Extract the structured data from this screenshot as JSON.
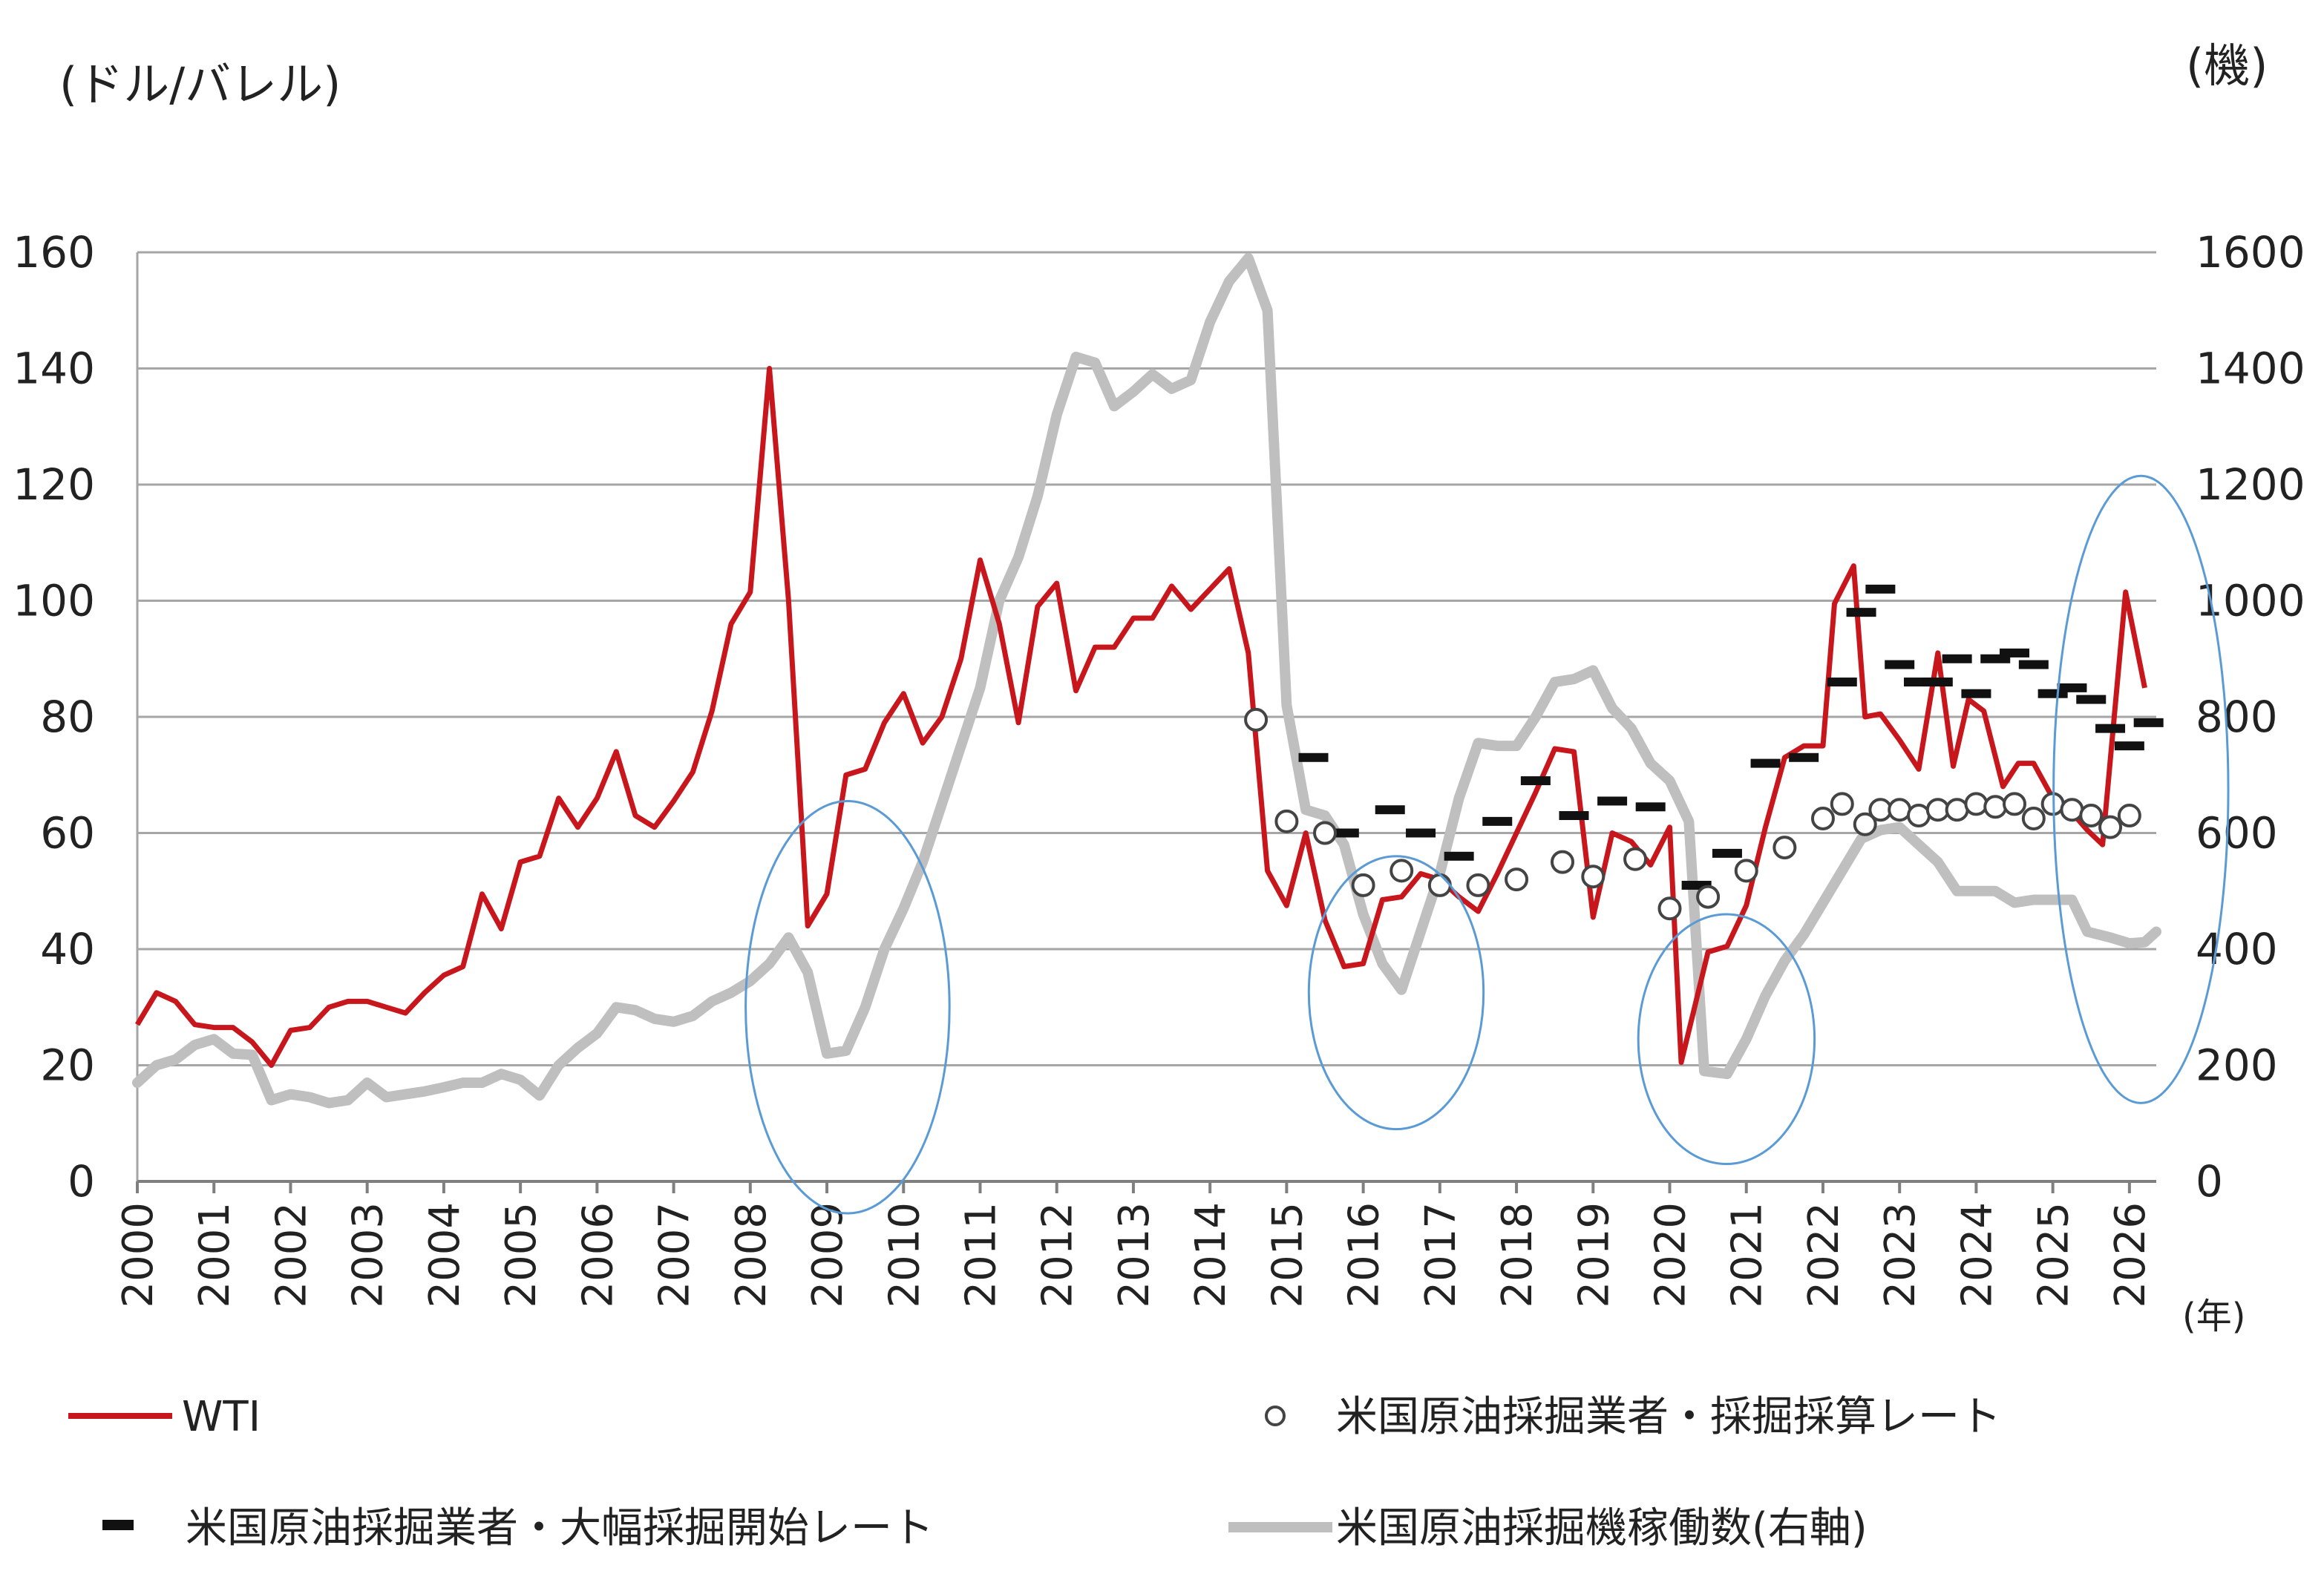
{
  "chart_data": {
    "type": "line",
    "left_axis_unit": "(ドル/バレル)",
    "right_axis_unit": "(機)",
    "x_unit": "(年)",
    "x_ticks": [
      "2000",
      "2001",
      "2002",
      "2003",
      "2004",
      "2005",
      "2006",
      "2007",
      "2008",
      "2009",
      "2010",
      "2011",
      "2012",
      "2013",
      "2014",
      "2015",
      "2016",
      "2017",
      "2018",
      "2019",
      "2020",
      "2021",
      "2022",
      "2023",
      "2024",
      "2025",
      "2026"
    ],
    "y_left_ticks": [
      "0",
      "20",
      "40",
      "60",
      "80",
      "100",
      "120",
      "140",
      "160"
    ],
    "y_right_ticks": [
      "0",
      "200",
      "400",
      "600",
      "800",
      "1000",
      "1200",
      "1400",
      "1600"
    ],
    "ylim_left": [
      0,
      160
    ],
    "ylim_right": [
      0,
      1600
    ],
    "xlim": [
      2000.0,
      2026.35
    ],
    "grid": "horizontal",
    "legend": {
      "wti": "WTI",
      "breakeven": "米国原油採掘業者・採掘採算レート",
      "new_well": "米国原油採掘業者・大幅採掘開始レート",
      "rigs": "米国原油採掘機稼働数(右軸)"
    },
    "colors": {
      "wti": "#c8161d",
      "rigs": "#bfbfbf",
      "circle": "#5b9bd5",
      "grid": "#a6a6a6"
    },
    "series": [
      {
        "name": "WTI",
        "axis": "left",
        "points": [
          [
            2000.0,
            27
          ],
          [
            2000.25,
            32.5
          ],
          [
            2000.5,
            31
          ],
          [
            2000.75,
            27
          ],
          [
            2001.0,
            26.5
          ],
          [
            2001.25,
            26.5
          ],
          [
            2001.5,
            24
          ],
          [
            2001.75,
            20
          ],
          [
            2002.0,
            26
          ],
          [
            2002.25,
            26.5
          ],
          [
            2002.5,
            30
          ],
          [
            2002.75,
            31
          ],
          [
            2003.0,
            31
          ],
          [
            2003.25,
            30
          ],
          [
            2003.5,
            29
          ],
          [
            2003.75,
            32.5
          ],
          [
            2004.0,
            35.5
          ],
          [
            2004.25,
            37
          ],
          [
            2004.5,
            49.5
          ],
          [
            2004.75,
            43.5
          ],
          [
            2005.0,
            55
          ],
          [
            2005.25,
            56
          ],
          [
            2005.5,
            66
          ],
          [
            2005.75,
            61
          ],
          [
            2006.0,
            66
          ],
          [
            2006.25,
            74
          ],
          [
            2006.5,
            63
          ],
          [
            2006.75,
            61
          ],
          [
            2007.0,
            65.5
          ],
          [
            2007.25,
            70.5
          ],
          [
            2007.5,
            81
          ],
          [
            2007.75,
            96
          ],
          [
            2008.0,
            101.5
          ],
          [
            2008.25,
            140
          ],
          [
            2008.5,
            100
          ],
          [
            2008.75,
            44
          ],
          [
            2009.0,
            49.5
          ],
          [
            2009.25,
            70
          ],
          [
            2009.5,
            71
          ],
          [
            2009.75,
            79
          ],
          [
            2010.0,
            84
          ],
          [
            2010.25,
            75.5
          ],
          [
            2010.5,
            80
          ],
          [
            2010.75,
            90
          ],
          [
            2011.0,
            107
          ],
          [
            2011.25,
            96
          ],
          [
            2011.5,
            79
          ],
          [
            2011.75,
            99
          ],
          [
            2012.0,
            103
          ],
          [
            2012.25,
            84.5
          ],
          [
            2012.5,
            92
          ],
          [
            2012.75,
            92
          ],
          [
            2013.0,
            97
          ],
          [
            2013.25,
            97
          ],
          [
            2013.5,
            102.5
          ],
          [
            2013.75,
            98.5
          ],
          [
            2014.0,
            102
          ],
          [
            2014.25,
            105.5
          ],
          [
            2014.5,
            91
          ],
          [
            2014.75,
            53.5
          ],
          [
            2015.0,
            47.5
          ],
          [
            2015.25,
            60
          ],
          [
            2015.5,
            45
          ],
          [
            2015.75,
            37
          ],
          [
            2016.0,
            37.5
          ],
          [
            2016.25,
            48.5
          ],
          [
            2016.5,
            49
          ],
          [
            2016.75,
            53
          ],
          [
            2017.0,
            52
          ],
          [
            2017.25,
            49
          ],
          [
            2017.5,
            46.5
          ],
          [
            2017.75,
            53
          ],
          [
            2018.0,
            60
          ],
          [
            2018.25,
            67
          ],
          [
            2018.5,
            74.5
          ],
          [
            2018.75,
            74
          ],
          [
            2019.0,
            45.5
          ],
          [
            2019.25,
            60
          ],
          [
            2019.5,
            58.5
          ],
          [
            2019.75,
            54.5
          ],
          [
            2020.0,
            61
          ],
          [
            2020.15,
            20.5
          ],
          [
            2020.5,
            39.5
          ],
          [
            2020.75,
            40.5
          ],
          [
            2021.0,
            47.5
          ],
          [
            2021.25,
            61
          ],
          [
            2021.5,
            73
          ],
          [
            2021.75,
            75
          ],
          [
            2022.0,
            75
          ],
          [
            2022.15,
            99.5
          ],
          [
            2022.4,
            106
          ],
          [
            2022.55,
            80
          ],
          [
            2022.75,
            80.5
          ],
          [
            2023.0,
            76
          ],
          [
            2023.25,
            71
          ],
          [
            2023.5,
            91
          ],
          [
            2023.7,
            71.5
          ],
          [
            2023.9,
            83
          ],
          [
            2024.1,
            81
          ],
          [
            2024.35,
            68
          ],
          [
            2024.55,
            72
          ],
          [
            2024.75,
            72
          ],
          [
            2025.0,
            66
          ],
          [
            2025.25,
            63.5
          ],
          [
            2025.45,
            60.5
          ],
          [
            2025.65,
            58
          ],
          [
            2025.95,
            101.5
          ],
          [
            2026.2,
            85
          ]
        ]
      },
      {
        "name": "米国原油採掘機稼働数(右軸)",
        "axis": "right",
        "points": [
          [
            2000.0,
            170
          ],
          [
            2000.25,
            200
          ],
          [
            2000.5,
            210
          ],
          [
            2000.75,
            235
          ],
          [
            2001.0,
            245
          ],
          [
            2001.25,
            220
          ],
          [
            2001.5,
            218
          ],
          [
            2001.75,
            140
          ],
          [
            2002.0,
            150
          ],
          [
            2002.25,
            145
          ],
          [
            2002.5,
            135
          ],
          [
            2002.75,
            140
          ],
          [
            2003.0,
            170
          ],
          [
            2003.25,
            145
          ],
          [
            2003.5,
            150
          ],
          [
            2003.75,
            155
          ],
          [
            2004.0,
            162
          ],
          [
            2004.25,
            170
          ],
          [
            2004.5,
            170
          ],
          [
            2004.75,
            185
          ],
          [
            2005.0,
            175
          ],
          [
            2005.25,
            148
          ],
          [
            2005.5,
            200
          ],
          [
            2005.75,
            230
          ],
          [
            2006.0,
            255
          ],
          [
            2006.25,
            300
          ],
          [
            2006.5,
            295
          ],
          [
            2006.75,
            280
          ],
          [
            2007.0,
            275
          ],
          [
            2007.25,
            285
          ],
          [
            2007.5,
            310
          ],
          [
            2007.75,
            325
          ],
          [
            2008.0,
            345
          ],
          [
            2008.25,
            375
          ],
          [
            2008.5,
            420
          ],
          [
            2008.75,
            360
          ],
          [
            2009.0,
            220
          ],
          [
            2009.25,
            225
          ],
          [
            2009.5,
            300
          ],
          [
            2009.75,
            400
          ],
          [
            2010.0,
            470
          ],
          [
            2010.25,
            550
          ],
          [
            2010.5,
            650
          ],
          [
            2010.75,
            750
          ],
          [
            2011.0,
            850
          ],
          [
            2011.25,
            1000
          ],
          [
            2011.5,
            1075
          ],
          [
            2011.75,
            1180
          ],
          [
            2012.0,
            1320
          ],
          [
            2012.25,
            1420
          ],
          [
            2012.5,
            1410
          ],
          [
            2012.75,
            1335
          ],
          [
            2013.0,
            1360
          ],
          [
            2013.25,
            1390
          ],
          [
            2013.5,
            1365
          ],
          [
            2013.75,
            1380
          ],
          [
            2014.0,
            1480
          ],
          [
            2014.25,
            1550
          ],
          [
            2014.5,
            1590
          ],
          [
            2014.75,
            1500
          ],
          [
            2015.0,
            820
          ],
          [
            2015.25,
            640
          ],
          [
            2015.5,
            630
          ],
          [
            2015.75,
            580
          ],
          [
            2016.0,
            460
          ],
          [
            2016.25,
            375
          ],
          [
            2016.5,
            330
          ],
          [
            2016.75,
            430
          ],
          [
            2017.0,
            530
          ],
          [
            2017.25,
            660
          ],
          [
            2017.5,
            755
          ],
          [
            2017.75,
            750
          ],
          [
            2018.0,
            750
          ],
          [
            2018.25,
            800
          ],
          [
            2018.5,
            860
          ],
          [
            2018.75,
            865
          ],
          [
            2019.0,
            880
          ],
          [
            2019.25,
            815
          ],
          [
            2019.5,
            780
          ],
          [
            2019.75,
            720
          ],
          [
            2020.0,
            690
          ],
          [
            2020.25,
            620
          ],
          [
            2020.45,
            190
          ],
          [
            2020.75,
            185
          ],
          [
            2021.0,
            245
          ],
          [
            2021.25,
            320
          ],
          [
            2021.5,
            380
          ],
          [
            2021.75,
            425
          ],
          [
            2022.0,
            480
          ],
          [
            2022.25,
            535
          ],
          [
            2022.5,
            590
          ],
          [
            2022.75,
            605
          ],
          [
            2023.0,
            610
          ],
          [
            2023.25,
            580
          ],
          [
            2023.5,
            550
          ],
          [
            2023.75,
            500
          ],
          [
            2024.0,
            500
          ],
          [
            2024.25,
            500
          ],
          [
            2024.5,
            480
          ],
          [
            2024.75,
            485
          ],
          [
            2025.0,
            485
          ],
          [
            2025.25,
            485
          ],
          [
            2025.45,
            430
          ],
          [
            2025.75,
            420
          ],
          [
            2026.0,
            410
          ],
          [
            2026.2,
            412
          ],
          [
            2026.35,
            430
          ]
        ]
      },
      {
        "name": "米国原油採掘業者・採掘採算レート",
        "axis": "left",
        "marker": "circle",
        "points": [
          [
            2014.6,
            79.5
          ],
          [
            2015.0,
            62
          ],
          [
            2015.5,
            60
          ],
          [
            2016.0,
            51
          ],
          [
            2016.5,
            53.5
          ],
          [
            2017.0,
            51
          ],
          [
            2017.5,
            51
          ],
          [
            2018.0,
            52
          ],
          [
            2018.6,
            55
          ],
          [
            2019.0,
            52.5
          ],
          [
            2019.55,
            55.5
          ],
          [
            2020.0,
            47
          ],
          [
            2020.5,
            49
          ],
          [
            2021.0,
            53.5
          ],
          [
            2021.5,
            57.5
          ],
          [
            2022.0,
            62.5
          ],
          [
            2022.25,
            65
          ],
          [
            2022.55,
            61.5
          ],
          [
            2022.75,
            64
          ],
          [
            2023.0,
            64
          ],
          [
            2023.25,
            63
          ],
          [
            2023.5,
            64
          ],
          [
            2023.75,
            64
          ],
          [
            2024.0,
            65
          ],
          [
            2024.25,
            64.5
          ],
          [
            2024.5,
            65
          ],
          [
            2024.75,
            62.5
          ],
          [
            2025.0,
            65
          ],
          [
            2025.25,
            64
          ],
          [
            2025.5,
            63
          ],
          [
            2025.75,
            61
          ],
          [
            2026.0,
            63
          ]
        ]
      },
      {
        "name": "米国原油採掘業者・大幅採掘開始レート",
        "axis": "left",
        "marker": "dash",
        "points": [
          [
            2015.35,
            73
          ],
          [
            2015.75,
            60
          ],
          [
            2016.35,
            64
          ],
          [
            2016.75,
            60
          ],
          [
            2017.25,
            56
          ],
          [
            2017.75,
            62
          ],
          [
            2018.25,
            69
          ],
          [
            2018.75,
            63
          ],
          [
            2019.25,
            65.5
          ],
          [
            2019.75,
            64.5
          ],
          [
            2020.35,
            51
          ],
          [
            2020.75,
            56.5
          ],
          [
            2021.25,
            72
          ],
          [
            2021.75,
            73
          ],
          [
            2022.25,
            86
          ],
          [
            2022.5,
            98
          ],
          [
            2022.75,
            102
          ],
          [
            2023.0,
            89
          ],
          [
            2023.25,
            86
          ],
          [
            2023.5,
            86
          ],
          [
            2023.75,
            90
          ],
          [
            2024.0,
            84
          ],
          [
            2024.25,
            90
          ],
          [
            2024.5,
            91
          ],
          [
            2024.75,
            89
          ],
          [
            2025.0,
            84
          ],
          [
            2025.25,
            85
          ],
          [
            2025.5,
            83
          ],
          [
            2025.75,
            78
          ],
          [
            2026.0,
            75
          ],
          [
            2026.25,
            79
          ]
        ]
      }
    ],
    "annotations": [
      {
        "shape": "ellipse",
        "cx_year": 2009.27,
        "cy_value": 30,
        "rx_years": 1.33,
        "ry_value": 35.5
      },
      {
        "shape": "ellipse",
        "cx_year": 2016.43,
        "cy_value": 32.5,
        "rx_years": 1.14,
        "ry_value": 23.5
      },
      {
        "shape": "ellipse",
        "cx_year": 2020.74,
        "cy_value": 24.5,
        "rx_years": 1.15,
        "ry_value": 21.5
      },
      {
        "shape": "ellipse",
        "cx_year": 2026.15,
        "cy_value": 67.5,
        "rx_years": 1.14,
        "ry_value": 54
      }
    ]
  }
}
